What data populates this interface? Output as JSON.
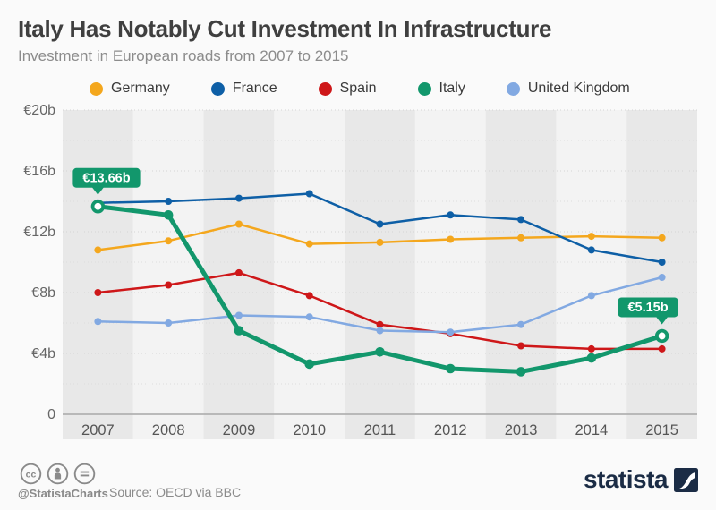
{
  "header": {
    "title": "Italy Has Notably Cut Investment In Infrastructure",
    "subtitle": "Investment in European roads from 2007 to 2015"
  },
  "chart_data": {
    "type": "line",
    "title": "Italy Has Notably Cut Investment In Infrastructure",
    "subtitle": "Investment in European roads from 2007 to 2015",
    "unit": "billions of euros",
    "categories": [
      "2007",
      "2008",
      "2009",
      "2010",
      "2011",
      "2012",
      "2013",
      "2014",
      "2015"
    ],
    "series": [
      {
        "name": "Germany",
        "color": "#F4A71D",
        "values": [
          10.8,
          11.4,
          12.5,
          11.2,
          11.3,
          11.5,
          11.6,
          11.7,
          11.6
        ]
      },
      {
        "name": "France",
        "color": "#0E5FA6",
        "values": [
          13.9,
          14.0,
          14.2,
          14.5,
          12.5,
          13.1,
          12.8,
          10.8,
          10.0
        ]
      },
      {
        "name": "Spain",
        "color": "#CE1719",
        "values": [
          8.0,
          8.5,
          9.3,
          7.8,
          5.9,
          5.3,
          4.5,
          4.3,
          4.3
        ]
      },
      {
        "name": "Italy",
        "color": "#12976C",
        "values": [
          13.66,
          13.1,
          5.5,
          3.3,
          4.1,
          3.0,
          2.8,
          3.7,
          5.15
        ],
        "emphasis": true
      },
      {
        "name": "United Kingdom",
        "color": "#82A9E2",
        "values": [
          6.1,
          6.0,
          6.5,
          6.4,
          5.5,
          5.4,
          5.9,
          7.8,
          9.0
        ]
      }
    ],
    "y_axis": {
      "max": 20,
      "ticks": [
        {
          "value": 20,
          "label": "€20b"
        },
        {
          "value": 16,
          "label": "€16b"
        },
        {
          "value": 12,
          "label": "€12b"
        },
        {
          "value": 8,
          "label": "€8b"
        },
        {
          "value": 4,
          "label": "€4b"
        },
        {
          "value": 0,
          "label": "0"
        }
      ]
    },
    "annotations": [
      {
        "series": "Italy",
        "category": "2007",
        "text": "€13.66b",
        "align": "left"
      },
      {
        "series": "Italy",
        "category": "2015",
        "text": "€5.15b",
        "align": "right"
      }
    ],
    "layout": {
      "legend_position": "top",
      "grid": "dotted-horizontal-every-2b",
      "band_columns": "alternating-gray",
      "draw_order": [
        "Germany",
        "France",
        "Spain",
        "United Kingdom",
        "Italy"
      ],
      "band_color": "#E8E8E8",
      "band_alt_color": "#F3F3F3",
      "grid_color": "#DCDCDC",
      "axis_color": "#A8A8A8",
      "tick_label_color": "#666666",
      "year_label_color": "#555555"
    }
  },
  "footer": {
    "handle": "@StatistaCharts",
    "source": "Source: OECD via BBC",
    "brand": "statista",
    "brand_color": "#1B2C45",
    "license_icons": [
      "cc",
      "attribution",
      "no-derivatives"
    ]
  }
}
